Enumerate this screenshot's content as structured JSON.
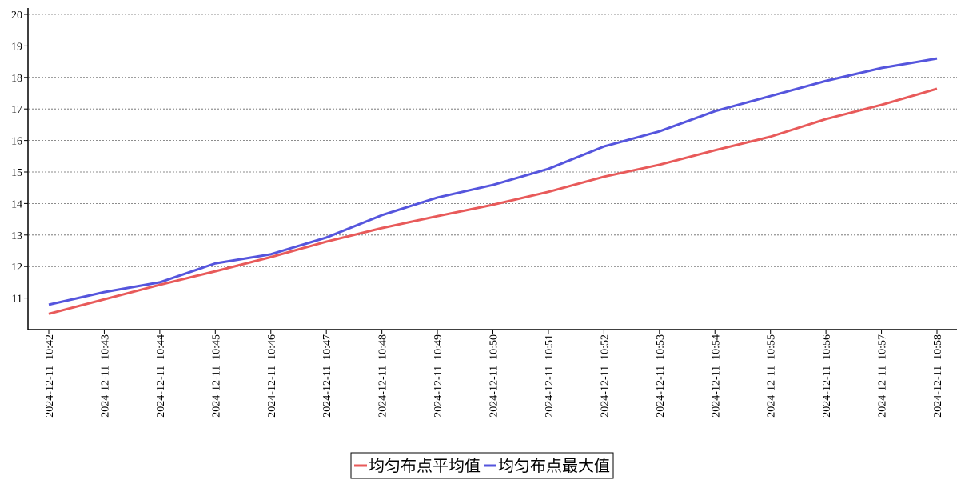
{
  "chart_data": {
    "type": "line",
    "categories": [
      "2024-12-11  10:42",
      "2024-12-11  10:43",
      "2024-12-11  10:44",
      "2024-12-11  10:45",
      "2024-12-11  10:46",
      "2024-12-11  10:47",
      "2024-12-11  10:48",
      "2024-12-11  10:49",
      "2024-12-11  10:50",
      "2024-12-11  10:51",
      "2024-12-11  10:52",
      "2024-12-11  10:53",
      "2024-12-11  10:54",
      "2024-12-11  10:55",
      "2024-12-11  10:56",
      "2024-12-11  10:57",
      "2024-12-11  10:58"
    ],
    "series": [
      {
        "name": "均匀布点平均值",
        "color": "#e85a5a",
        "values": [
          10.5,
          10.96,
          11.42,
          11.85,
          12.3,
          12.79,
          13.22,
          13.6,
          13.96,
          14.37,
          14.85,
          15.23,
          15.69,
          16.12,
          16.68,
          17.13,
          17.64
        ]
      },
      {
        "name": "均匀布点最大值",
        "color": "#5555dd",
        "values": [
          10.79,
          11.19,
          11.5,
          12.1,
          12.39,
          12.92,
          13.63,
          14.19,
          14.59,
          15.1,
          15.81,
          16.29,
          16.93,
          17.41,
          17.89,
          18.3,
          18.6
        ]
      }
    ],
    "ylim": [
      10,
      20
    ],
    "yticks": [
      11,
      12,
      13,
      14,
      15,
      16,
      17,
      18,
      19,
      20
    ],
    "grid": true,
    "legend": "bottom"
  }
}
